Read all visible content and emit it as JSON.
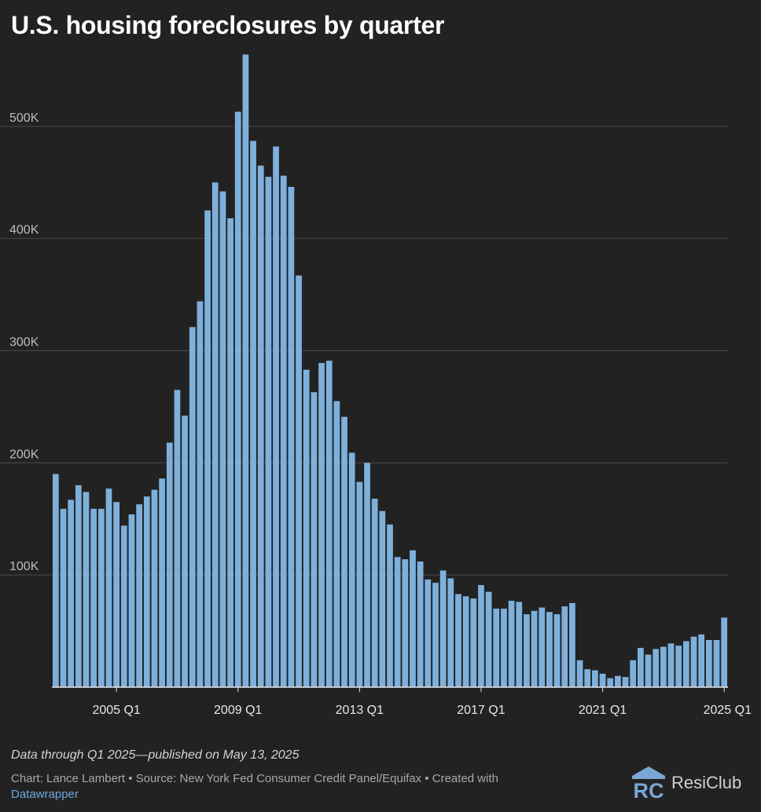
{
  "chart_data": {
    "type": "bar",
    "title": "U.S. housing foreclosures by quarter",
    "xlabel": "",
    "ylabel": "",
    "ylim": [
      0,
      565000
    ],
    "yticks": [
      {
        "value": 100000,
        "label": "100K"
      },
      {
        "value": 200000,
        "label": "200K"
      },
      {
        "value": 300000,
        "label": "300K"
      },
      {
        "value": 400000,
        "label": "400K"
      },
      {
        "value": 500000,
        "label": "500K"
      }
    ],
    "xticks": [
      {
        "index": 8,
        "label": "2005 Q1"
      },
      {
        "index": 24,
        "label": "2009 Q1"
      },
      {
        "index": 40,
        "label": "2013 Q1"
      },
      {
        "index": 56,
        "label": "2017 Q1"
      },
      {
        "index": 72,
        "label": "2021 Q1"
      },
      {
        "index": 88,
        "label": "2025 Q1"
      }
    ],
    "start_period": "2003 Q1",
    "end_period": "2025 Q1",
    "bar_color": "#7eb0dc",
    "values": [
      190000,
      159000,
      167000,
      180000,
      174000,
      159000,
      159000,
      177000,
      165000,
      144000,
      154000,
      163000,
      170000,
      176000,
      186000,
      218000,
      265000,
      242000,
      321000,
      344000,
      425000,
      450000,
      442000,
      418000,
      513000,
      564000,
      487000,
      465000,
      455000,
      482000,
      456000,
      446000,
      367000,
      283000,
      263000,
      289000,
      291000,
      255000,
      241000,
      209000,
      183000,
      200000,
      168000,
      157000,
      145000,
      116000,
      114000,
      122000,
      112000,
      96000,
      93000,
      104000,
      97000,
      83000,
      81000,
      79000,
      91000,
      85000,
      70000,
      70000,
      77000,
      76000,
      65000,
      68000,
      71000,
      67000,
      65000,
      72000,
      75000,
      24000,
      16000,
      15000,
      12000,
      8000,
      10000,
      9000,
      24000,
      35000,
      29000,
      34000,
      36000,
      39000,
      37000,
      41000,
      45000,
      47000,
      42000,
      42000,
      62000
    ]
  },
  "footer": {
    "note": "Data through Q1 2025—published on May 13, 2025",
    "credit": "Chart: Lance Lambert • Source: New York Fed Consumer Credit Panel/Equifax • Created with",
    "tool": "Datawrapper",
    "logo_mark": "RC",
    "logo_text": "ResiClub"
  },
  "colors": {
    "background": "#222222",
    "gridline": "#4a4a4a",
    "axis": "#e6e6e6",
    "tick_text": "#bdbdbd",
    "xtick_text": "#e8e8e8",
    "logo_mark": "#7aa7d4"
  }
}
